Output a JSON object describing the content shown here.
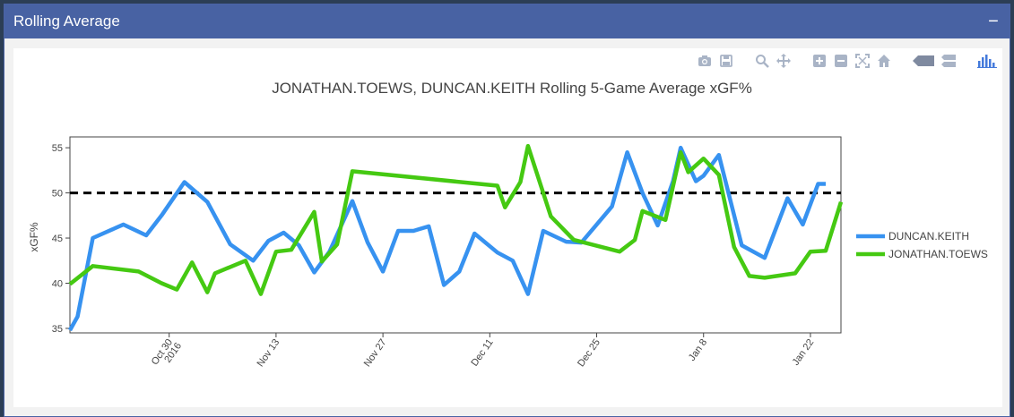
{
  "panel": {
    "title": "Rolling Average",
    "collapse_icon": "−"
  },
  "colors": {
    "keith": "#3792f0",
    "toews": "#45c912",
    "reference": "#000000",
    "header": "#4862a3"
  },
  "modebar": {
    "icons": [
      "camera-icon",
      "save-icon",
      "zoom-icon",
      "pan-icon",
      "zoom-in-icon",
      "zoom-out-icon",
      "autoscale-icon",
      "reset-axes-icon",
      "hover-closest-icon",
      "hover-compare-icon",
      "plotly-logo-icon"
    ]
  },
  "chart_data": {
    "type": "line",
    "title": "JONATHAN.TOEWS, DUNCAN.KEITH Rolling 5-Game Average xGF%",
    "ylabel": "xGF%",
    "xlabel": "",
    "ylim": [
      34.5,
      56.2
    ],
    "xlim": [
      "2016-10-17",
      "2017-01-26"
    ],
    "yticks": [
      35,
      40,
      45,
      50,
      55
    ],
    "xticks": [
      {
        "date": "2016-10-30",
        "label": "Oct 30",
        "sublabel": "2016"
      },
      {
        "date": "2016-11-13",
        "label": "Nov 13",
        "sublabel": ""
      },
      {
        "date": "2016-11-27",
        "label": "Nov 27",
        "sublabel": ""
      },
      {
        "date": "2016-12-11",
        "label": "Dec 11",
        "sublabel": ""
      },
      {
        "date": "2016-12-25",
        "label": "Dec 25",
        "sublabel": ""
      },
      {
        "date": "2017-01-08",
        "label": "Jan 8",
        "sublabel": ""
      },
      {
        "date": "2017-01-22",
        "label": "Jan 22",
        "sublabel": ""
      }
    ],
    "reference_line": {
      "y": 50,
      "style": "dashed"
    },
    "legend_position": "right",
    "series": [
      {
        "name": "DUNCAN.KEITH",
        "x": [
          "2016-10-17",
          "2016-10-18",
          "2016-10-20",
          "2016-10-24",
          "2016-10-27",
          "2016-10-29",
          "2016-11-01",
          "2016-11-04",
          "2016-11-07",
          "2016-11-10",
          "2016-11-12",
          "2016-11-14",
          "2016-11-16",
          "2016-11-18",
          "2016-11-20",
          "2016-11-23",
          "2016-11-25",
          "2016-11-27",
          "2016-11-29",
          "2016-12-01",
          "2016-12-03",
          "2016-12-05",
          "2016-12-07",
          "2016-12-09",
          "2016-12-12",
          "2016-12-14",
          "2016-12-16",
          "2016-12-18",
          "2016-12-21",
          "2016-12-23",
          "2016-12-27",
          "2016-12-29",
          "2016-12-31",
          "2017-01-02",
          "2017-01-04",
          "2017-01-05",
          "2017-01-07",
          "2017-01-08",
          "2017-01-10",
          "2017-01-13",
          "2017-01-16",
          "2017-01-19",
          "2017-01-21",
          "2017-01-23",
          "2017-01-24"
        ],
        "y": [
          34.8,
          36.3,
          45.0,
          46.5,
          45.3,
          47.5,
          51.2,
          49.0,
          44.3,
          42.5,
          44.7,
          45.6,
          44.2,
          41.2,
          43.5,
          49.1,
          44.5,
          41.3,
          45.8,
          45.8,
          46.3,
          39.8,
          41.3,
          45.5,
          43.4,
          42.5,
          38.8,
          45.8,
          44.6,
          44.5,
          48.5,
          54.5,
          50.0,
          46.4,
          51.3,
          55.0,
          51.3,
          51.9,
          54.2,
          44.2,
          42.8,
          49.4,
          46.5,
          51.0,
          51.0
        ]
      },
      {
        "name": "JONATHAN.TOEWS",
        "x": [
          "2016-10-17",
          "2016-10-20",
          "2016-10-26",
          "2016-10-29",
          "2016-10-31",
          "2016-11-02",
          "2016-11-04",
          "2016-11-05",
          "2016-11-09",
          "2016-11-11",
          "2016-11-13",
          "2016-11-15",
          "2016-11-18",
          "2016-11-19",
          "2016-11-21",
          "2016-11-23",
          "2016-12-12",
          "2016-12-13",
          "2016-12-15",
          "2016-12-16",
          "2016-12-19",
          "2016-12-22",
          "2016-12-28",
          "2016-12-30",
          "2016-12-31",
          "2017-01-03",
          "2017-01-05",
          "2017-01-06",
          "2017-01-08",
          "2017-01-10",
          "2017-01-12",
          "2017-01-14",
          "2017-01-16",
          "2017-01-20",
          "2017-01-22",
          "2017-01-24",
          "2017-01-26"
        ],
        "y": [
          39.9,
          41.9,
          41.3,
          40.0,
          39.3,
          42.3,
          39.0,
          41.1,
          42.5,
          38.8,
          43.5,
          43.7,
          47.9,
          42.4,
          44.3,
          52.4,
          50.8,
          48.4,
          51.2,
          55.2,
          47.4,
          44.8,
          43.5,
          44.8,
          48.0,
          47.0,
          54.5,
          52.3,
          53.8,
          52.0,
          44.0,
          40.8,
          40.6,
          41.1,
          43.5,
          43.6,
          49.0
        ]
      }
    ]
  }
}
